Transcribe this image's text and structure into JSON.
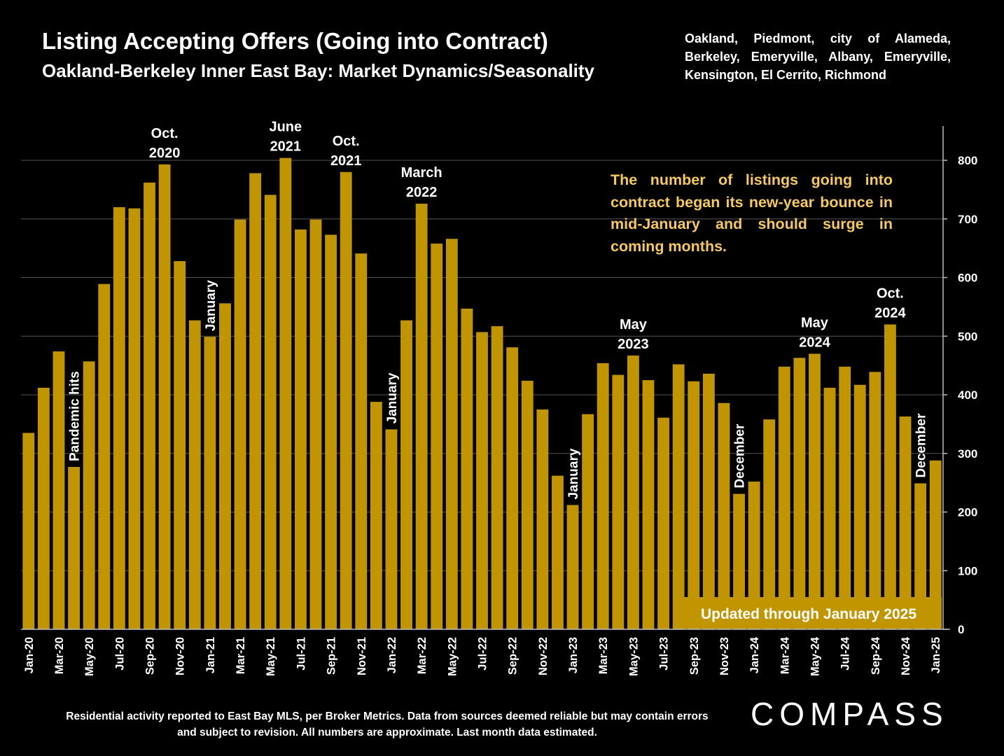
{
  "title": "Listing Accepting Offers (Going into Contract)",
  "subtitle": "Oakland-Berkeley Inner East Bay: Market Dynamics/Seasonality",
  "region": "Oakland, Piedmont, city of Alameda, Berkeley, Emeryville, Albany, Emeryville, Kensington, El Cerrito, Richmond",
  "note": "The number of listings going into contract began its new-year bounce in mid-January and should surge in coming months.",
  "updated_banner": "Updated through January 2025",
  "footer": "Residential activity reported to East Bay MLS, per Broker Metrics. Data from sources deemed reliable but may contain errors and subject to revision. All numbers are approximate. Last month data estimated.",
  "logo": "COMPASS",
  "colors": {
    "bar": "#c19500",
    "background": "#000000",
    "note_text": "#f5c95a",
    "grid": "#555555"
  },
  "chart_data": {
    "type": "bar",
    "categories": [
      "Jan-20",
      "Feb-20",
      "Mar-20",
      "Apr-20",
      "May-20",
      "Jun-20",
      "Jul-20",
      "Aug-20",
      "Sep-20",
      "Oct-20",
      "Nov-20",
      "Dec-20",
      "Jan-21",
      "Feb-21",
      "Mar-21",
      "Apr-21",
      "May-21",
      "Jun-21",
      "Jul-21",
      "Aug-21",
      "Sep-21",
      "Oct-21",
      "Nov-21",
      "Dec-21",
      "Jan-22",
      "Feb-22",
      "Mar-22",
      "Apr-22",
      "May-22",
      "Jun-22",
      "Jul-22",
      "Aug-22",
      "Sep-22",
      "Oct-22",
      "Nov-22",
      "Dec-22",
      "Jan-23",
      "Feb-23",
      "Mar-23",
      "Apr-23",
      "May-23",
      "Jun-23",
      "Jul-23",
      "Aug-23",
      "Sep-23",
      "Oct-23",
      "Nov-23",
      "Dec-23",
      "Jan-24",
      "Feb-24",
      "Mar-24",
      "Apr-24",
      "May-24",
      "Jun-24",
      "Jul-24",
      "Aug-24",
      "Sep-24",
      "Oct-24",
      "Nov-24",
      "Dec-24",
      "Jan-25"
    ],
    "tick_labels": [
      "Jan-20",
      "Mar-20",
      "May-20",
      "Jul-20",
      "Sep-20",
      "Nov-20",
      "Jan-21",
      "Mar-21",
      "May-21",
      "Jul-21",
      "Sep-21",
      "Nov-21",
      "Jan-22",
      "Mar-22",
      "May-22",
      "Jul-22",
      "Sep-22",
      "Nov-22",
      "Jan-23",
      "Mar-23",
      "May-23",
      "Jul-23",
      "Sep-23",
      "Nov-23",
      "Jan-24",
      "Mar-24",
      "May-24",
      "Jul-24",
      "Sep-24",
      "Nov-24",
      "Jan-25"
    ],
    "values": [
      335,
      412,
      474,
      277,
      457,
      589,
      720,
      718,
      762,
      793,
      628,
      527,
      499,
      556,
      699,
      778,
      741,
      804,
      682,
      699,
      673,
      780,
      641,
      388,
      341,
      527,
      726,
      658,
      666,
      547,
      507,
      517,
      481,
      424,
      375,
      262,
      212,
      367,
      454,
      434,
      467,
      425,
      361,
      452,
      423,
      436,
      386,
      231,
      252,
      358,
      448,
      463,
      470,
      412,
      448,
      417,
      439,
      520,
      363,
      249,
      288
    ],
    "ylim": [
      0,
      850
    ],
    "yticks": [
      0,
      100,
      200,
      300,
      400,
      500,
      600,
      700,
      800
    ],
    "y_axis_side": "right",
    "grid": true,
    "annotations": [
      {
        "text": [
          "Oct.",
          "2020"
        ],
        "index": 9,
        "orientation": "horizontal"
      },
      {
        "text": [
          "June",
          "2021"
        ],
        "index": 17,
        "orientation": "horizontal"
      },
      {
        "text": [
          "Oct.",
          "2021"
        ],
        "index": 21,
        "orientation": "horizontal"
      },
      {
        "text": [
          "March",
          "2022"
        ],
        "index": 26,
        "orientation": "horizontal"
      },
      {
        "text": [
          "May",
          "2023"
        ],
        "index": 40,
        "orientation": "horizontal"
      },
      {
        "text": [
          "May",
          "2024"
        ],
        "index": 52,
        "orientation": "horizontal"
      },
      {
        "text": [
          "Oct.",
          "2024"
        ],
        "index": 57,
        "orientation": "horizontal"
      },
      {
        "text": [
          "Pandemic hits"
        ],
        "index": 3,
        "orientation": "vertical"
      },
      {
        "text": [
          "January"
        ],
        "index": 12,
        "orientation": "vertical"
      },
      {
        "text": [
          "January"
        ],
        "index": 24,
        "orientation": "vertical"
      },
      {
        "text": [
          "January"
        ],
        "index": 36,
        "orientation": "vertical"
      },
      {
        "text": [
          "December"
        ],
        "index": 47,
        "orientation": "vertical"
      },
      {
        "text": [
          "December"
        ],
        "index": 59,
        "orientation": "vertical"
      }
    ]
  }
}
